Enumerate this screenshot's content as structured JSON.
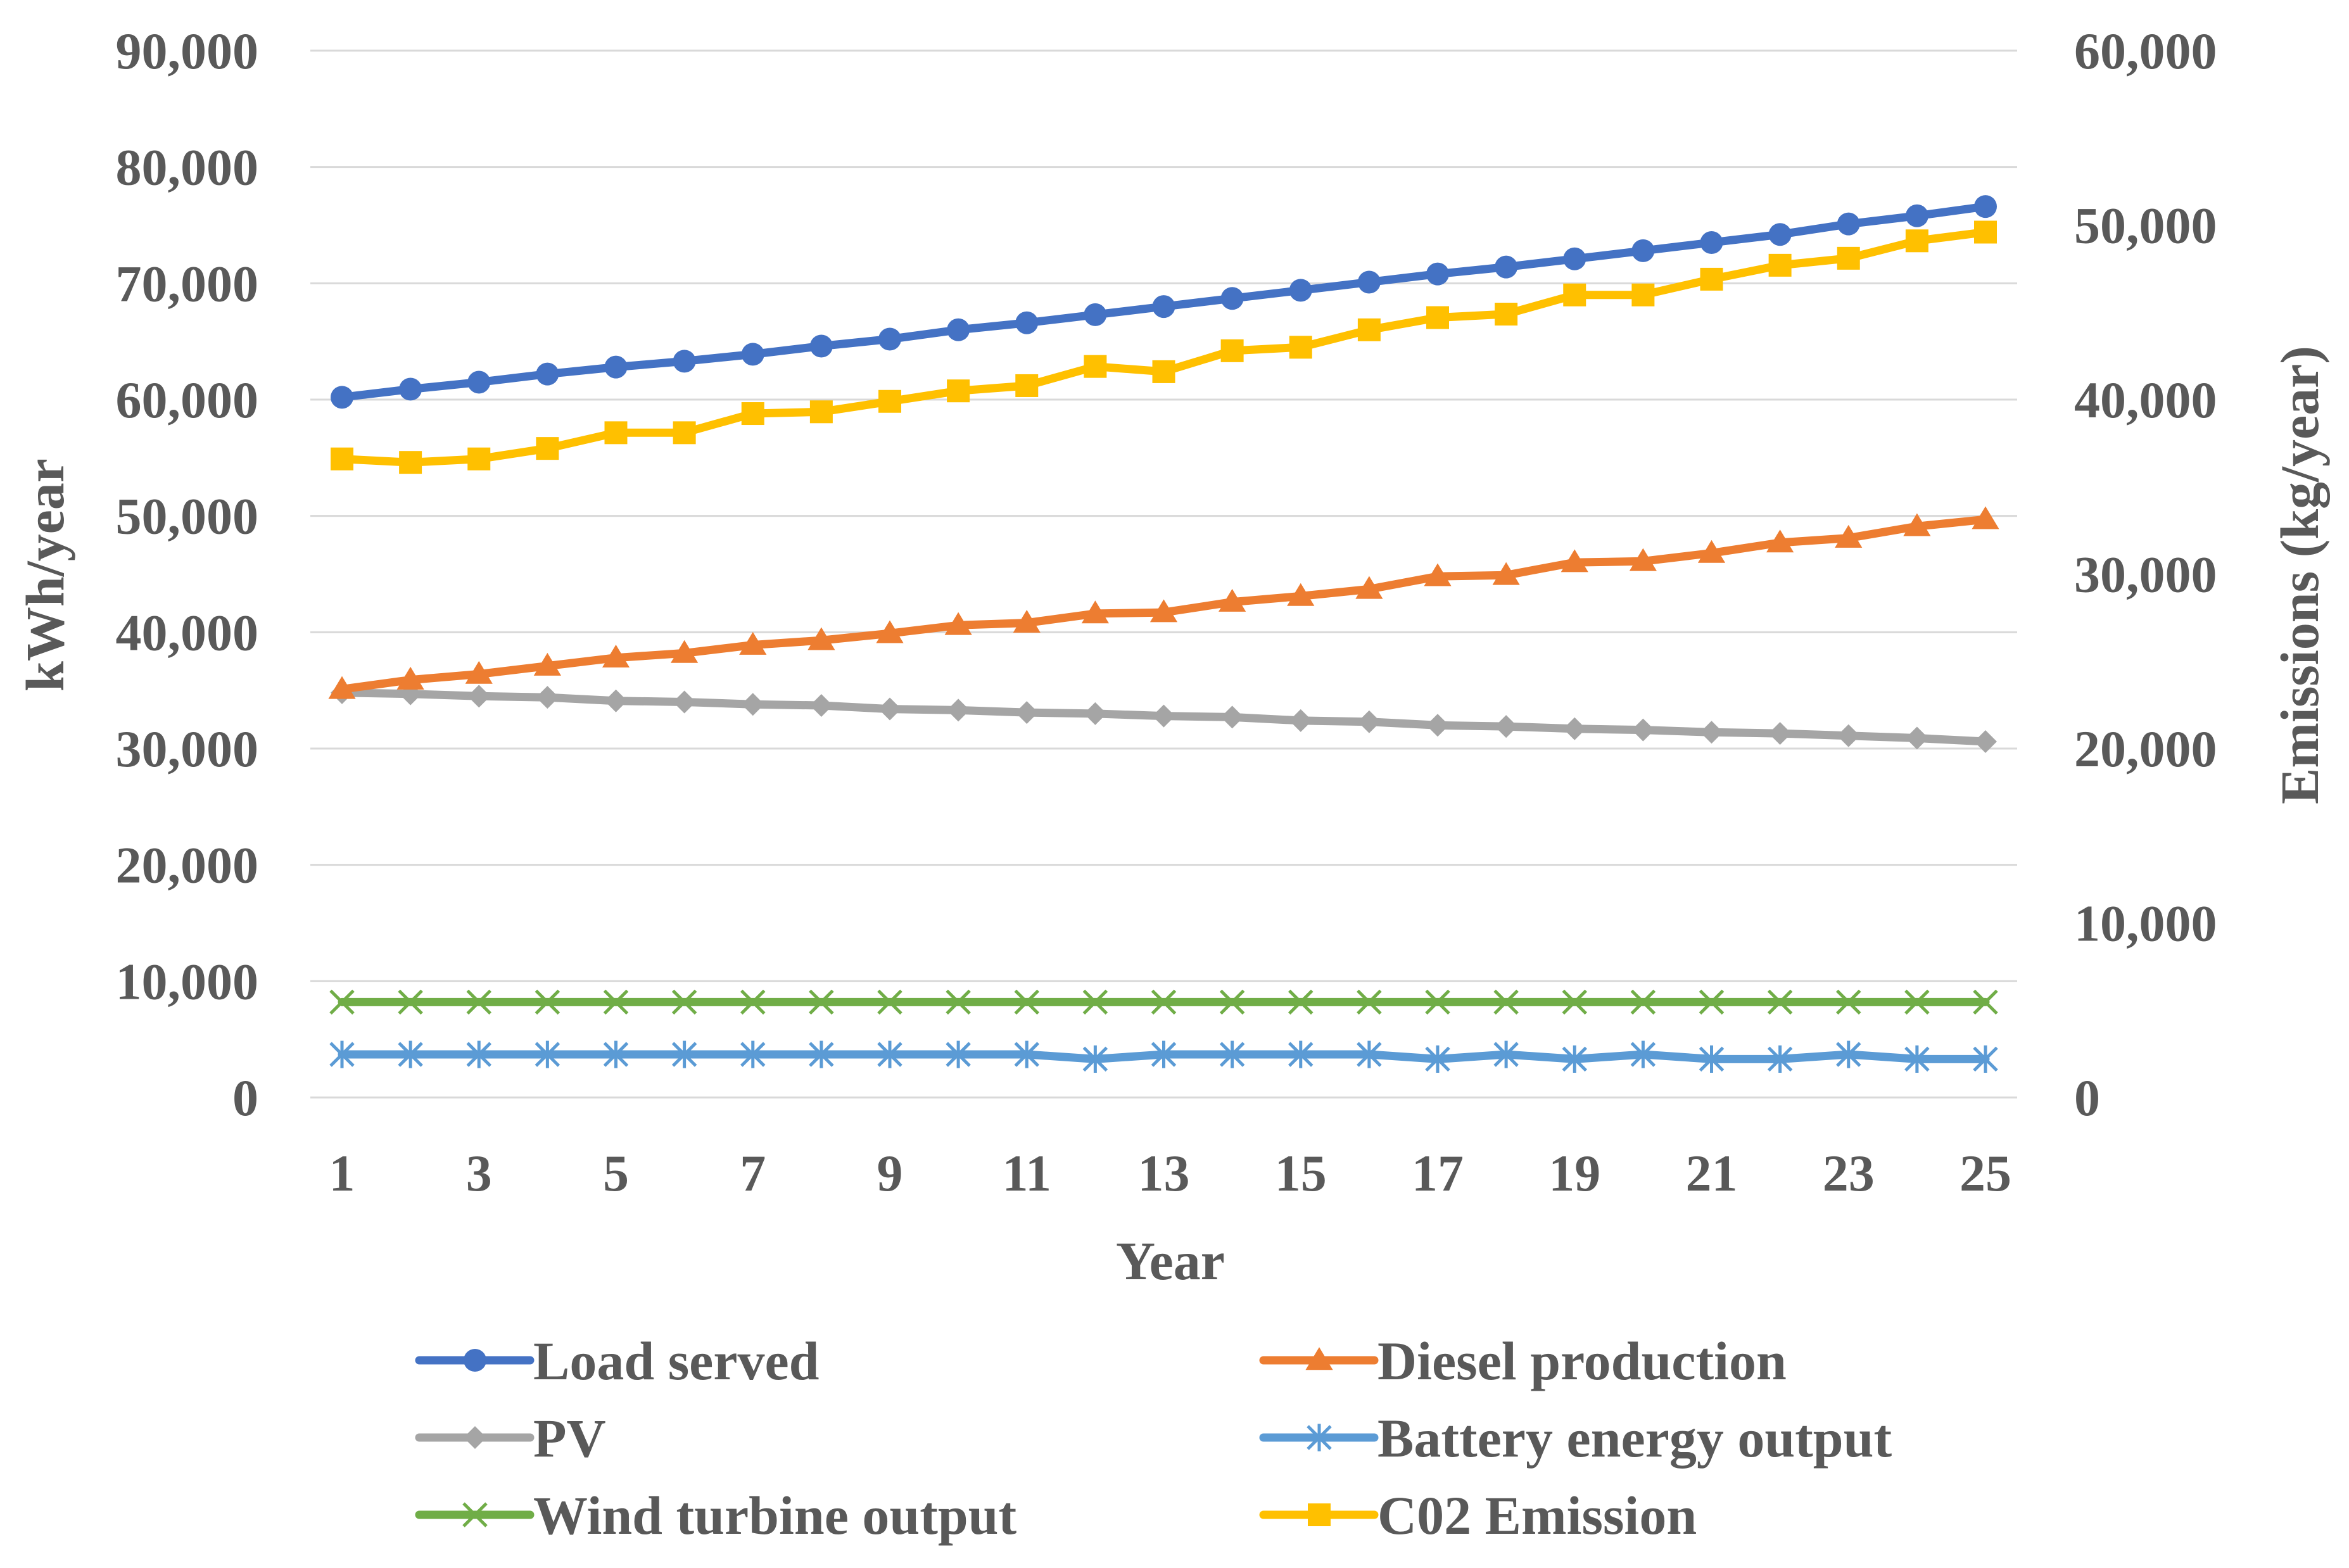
{
  "chart_data": {
    "type": "line",
    "title": "",
    "xlabel": "Year",
    "ylabel": "kWh/year",
    "y2label": "Emissions (kg/year)",
    "x": [
      1,
      2,
      3,
      4,
      5,
      6,
      7,
      8,
      9,
      10,
      11,
      12,
      13,
      14,
      15,
      16,
      17,
      18,
      19,
      20,
      21,
      22,
      23,
      24,
      25
    ],
    "x_tick_labels": [
      "1",
      "3",
      "5",
      "7",
      "9",
      "11",
      "13",
      "15",
      "17",
      "19",
      "21",
      "23",
      "25"
    ],
    "ylim": [
      0,
      90000
    ],
    "y_tick_labels": [
      "0",
      "10,000",
      "20,000",
      "30,000",
      "40,000",
      "50,000",
      "60,000",
      "70,000",
      "80,000",
      "90,000"
    ],
    "y2lim": [
      0,
      60000
    ],
    "y2_tick_labels": [
      "0",
      "10,000",
      "20,000",
      "30,000",
      "40,000",
      "50,000",
      "60,000"
    ],
    "grid": true,
    "legend_position": "bottom",
    "series": [
      {
        "name": "Load served",
        "axis": "left",
        "color": "#4472c4",
        "marker": "circle",
        "values": [
          60200,
          60900,
          61500,
          62200,
          62800,
          63300,
          63900,
          64600,
          65200,
          66000,
          66600,
          67300,
          68000,
          68700,
          69400,
          70100,
          70800,
          71400,
          72100,
          72800,
          73500,
          74200,
          75100,
          75800,
          76600
        ]
      },
      {
        "name": "Diesel production",
        "axis": "left",
        "color": "#ed7d31",
        "marker": "triangle",
        "values": [
          35100,
          35900,
          36400,
          37100,
          37800,
          38200,
          38900,
          39300,
          39900,
          40600,
          40800,
          41600,
          41700,
          42600,
          43100,
          43700,
          44800,
          44900,
          46000,
          46100,
          46800,
          47700,
          48100,
          49100,
          49700
        ]
      },
      {
        "name": "PV",
        "axis": "left",
        "color": "#a5a5a5",
        "marker": "diamond",
        "values": [
          34800,
          34700,
          34500,
          34400,
          34100,
          34000,
          33800,
          33700,
          33400,
          33300,
          33100,
          33000,
          32800,
          32700,
          32400,
          32300,
          32000,
          31900,
          31700,
          31600,
          31400,
          31300,
          31100,
          30900,
          30600
        ]
      },
      {
        "name": "Battery energy output",
        "axis": "left",
        "color": "#5b9bd5",
        "marker": "star",
        "values": [
          3700,
          3700,
          3700,
          3700,
          3700,
          3700,
          3700,
          3700,
          3700,
          3700,
          3700,
          3300,
          3700,
          3700,
          3700,
          3700,
          3300,
          3700,
          3300,
          3700,
          3300,
          3300,
          3700,
          3300,
          3300
        ]
      },
      {
        "name": "Wind turbine output",
        "axis": "left",
        "color": "#70ad47",
        "marker": "x",
        "values": [
          8200,
          8200,
          8200,
          8200,
          8200,
          8200,
          8200,
          8200,
          8200,
          8200,
          8200,
          8200,
          8200,
          8200,
          8200,
          8200,
          8200,
          8200,
          8200,
          8200,
          8200,
          8200,
          8200,
          8200,
          8200
        ]
      },
      {
        "name": "C02 Emission",
        "axis": "right",
        "color": "#ffc000",
        "marker": "square",
        "values": [
          36600,
          36400,
          36600,
          37200,
          38100,
          38100,
          39200,
          39300,
          39900,
          40500,
          40800,
          41900,
          41600,
          42800,
          43000,
          44000,
          44700,
          44900,
          46000,
          46000,
          46900,
          47700,
          48100,
          49100,
          49600
        ]
      }
    ]
  }
}
